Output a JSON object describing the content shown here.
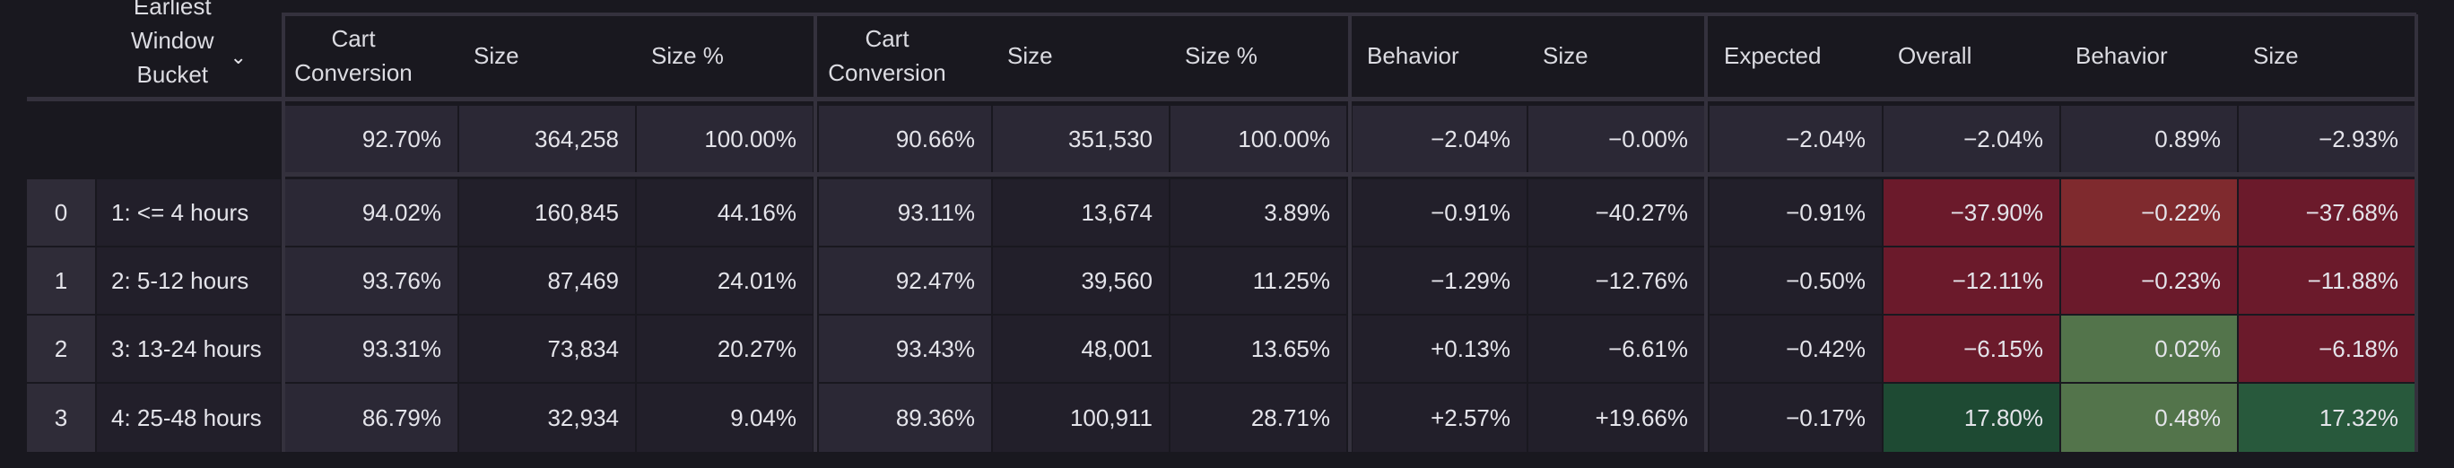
{
  "header": {
    "bucket_label": [
      "Earliest",
      "Window",
      "Bucket"
    ],
    "group1": [
      "Cart Conversion",
      "Size",
      "Size %"
    ],
    "group2": [
      "Cart Conversion",
      "Size",
      "Size %"
    ],
    "group3": [
      "Behavior",
      "Size"
    ],
    "group4": [
      "Expected",
      "Overall",
      "Behavior",
      "Size"
    ]
  },
  "colors": {
    "strong_red": "#6b1a2b",
    "light_red": "#7f2a2e",
    "light_green": "#53744b",
    "dark_green": "#1e4a33",
    "strong_green": "#28593c"
  },
  "total": {
    "g1": [
      "92.70%",
      "364,258",
      "100.00%"
    ],
    "g2": [
      "90.66%",
      "351,530",
      "100.00%"
    ],
    "g3": [
      "−2.04%",
      "−0.00%"
    ],
    "g4": [
      "−2.04%",
      "−2.04%",
      "0.89%",
      "−2.93%"
    ]
  },
  "rows": [
    {
      "index": "0",
      "bucket": "1: <= 4 hours",
      "g1": [
        "94.02%",
        "160,845",
        "44.16%"
      ],
      "g2": [
        "93.11%",
        "13,674",
        "3.89%"
      ],
      "g3": [
        "−0.91%",
        "−40.27%"
      ],
      "g4": [
        "−0.91%",
        "−37.90%",
        "−0.22%",
        "−37.68%"
      ],
      "g4_colors": [
        "",
        "strong_red",
        "light_red",
        "strong_red"
      ]
    },
    {
      "index": "1",
      "bucket": "2: 5-12 hours",
      "g1": [
        "93.76%",
        "87,469",
        "24.01%"
      ],
      "g2": [
        "92.47%",
        "39,560",
        "11.25%"
      ],
      "g3": [
        "−1.29%",
        "−12.76%"
      ],
      "g4": [
        "−0.50%",
        "−12.11%",
        "−0.23%",
        "−11.88%"
      ],
      "g4_colors": [
        "",
        "strong_red",
        "strong_red",
        "strong_red"
      ]
    },
    {
      "index": "2",
      "bucket": "3: 13-24 hours",
      "g1": [
        "93.31%",
        "73,834",
        "20.27%"
      ],
      "g2": [
        "93.43%",
        "48,001",
        "13.65%"
      ],
      "g3": [
        "+0.13%",
        "−6.61%"
      ],
      "g4": [
        "−0.42%",
        "−6.15%",
        "0.02%",
        "−6.18%"
      ],
      "g4_colors": [
        "",
        "strong_red",
        "light_green",
        "strong_red"
      ]
    },
    {
      "index": "3",
      "bucket": "4: 25-48 hours",
      "g1": [
        "86.79%",
        "32,934",
        "9.04%"
      ],
      "g2": [
        "89.36%",
        "100,911",
        "28.71%"
      ],
      "g3": [
        "+2.57%",
        "+19.66%"
      ],
      "g4": [
        "−0.17%",
        "17.80%",
        "0.48%",
        "17.32%"
      ],
      "g4_colors": [
        "",
        "dark_green",
        "light_green",
        "strong_green"
      ]
    }
  ]
}
